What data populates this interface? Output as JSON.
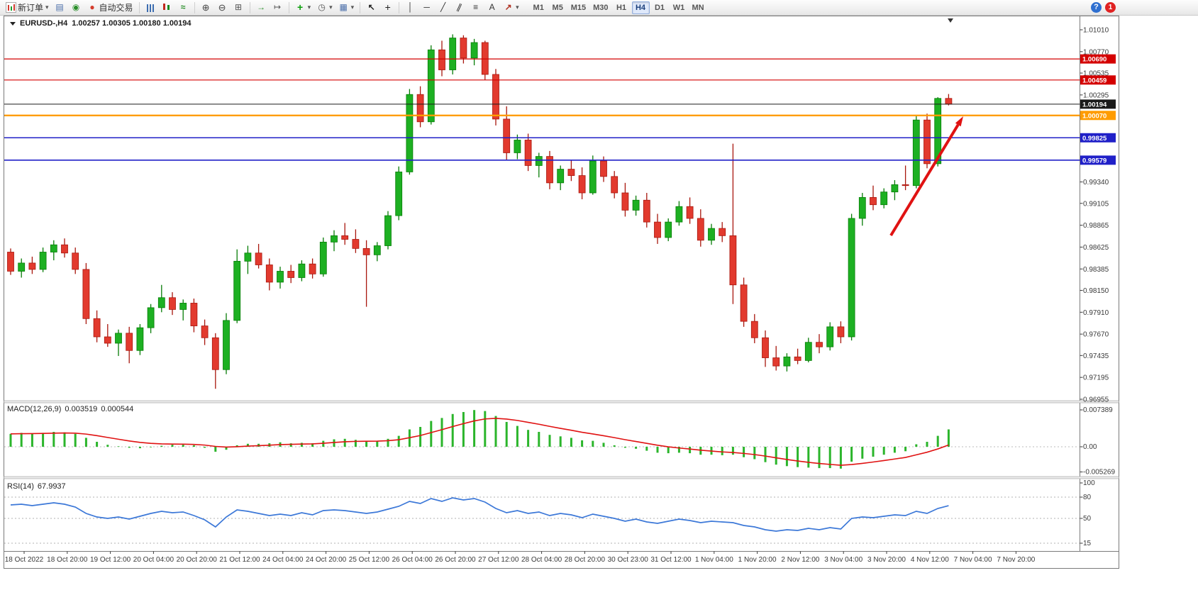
{
  "app": {
    "symbol": "EURUSD-,H4",
    "ohlc": "1.00257 1.00305 1.00180 1.00194"
  },
  "toolbar": {
    "groups": [
      {
        "items": [
          {
            "name": "new-order-button",
            "icon": "new-order",
            "label": "新订单",
            "dropdown": true
          },
          {
            "name": "charts-window-button",
            "icon": "chart-window"
          },
          {
            "name": "refresh-button",
            "icon": "refresh"
          },
          {
            "name": "autotrading-button",
            "icon": "autotrading",
            "label": "自动交易"
          }
        ]
      },
      {
        "items": [
          {
            "name": "bar-chart-button",
            "icon": "bars"
          },
          {
            "name": "candlestick-chart-button",
            "icon": "candles"
          },
          {
            "name": "line-chart-button",
            "icon": "line"
          }
        ]
      },
      {
        "items": [
          {
            "name": "zoom-in-button",
            "icon": "zoom-in"
          },
          {
            "name": "zoom-out-button",
            "icon": "zoom-out"
          },
          {
            "name": "tile-windows-button",
            "icon": "tile"
          }
        ]
      },
      {
        "items": [
          {
            "name": "auto-scroll-button",
            "icon": "auto-scroll"
          },
          {
            "name": "chart-shift-button",
            "icon": "chart-shift"
          }
        ]
      },
      {
        "items": [
          {
            "name": "indicators-button",
            "icon": "indicators",
            "dropdown": true
          },
          {
            "name": "periods-button",
            "icon": "clock",
            "dropdown": true
          },
          {
            "name": "templates-button",
            "icon": "template",
            "dropdown": true
          }
        ]
      },
      {
        "items": [
          {
            "name": "cursor-button",
            "icon": "cursor"
          },
          {
            "name": "crosshair-button",
            "icon": "crosshair"
          }
        ]
      },
      {
        "items": [
          {
            "name": "vertical-line-button",
            "icon": "vline"
          },
          {
            "name": "horizontal-line-button",
            "icon": "hline"
          },
          {
            "name": "trendline-button",
            "icon": "trendline"
          },
          {
            "name": "equidistant-channel-button",
            "icon": "channel"
          },
          {
            "name": "fibonacci-button",
            "icon": "fibo"
          },
          {
            "name": "text-button",
            "icon": "text"
          },
          {
            "name": "arrows-button",
            "icon": "arrows",
            "dropdown": true
          }
        ]
      }
    ],
    "icon_glyphs": {
      "new-order": "",
      "chart-window": "▤",
      "refresh": "◉",
      "autotrading": "●",
      "bars": "",
      "candles": "",
      "line": "≈",
      "zoom-in": "⊕",
      "zoom-out": "⊖",
      "tile": "⊞",
      "auto-scroll": "→",
      "chart-shift": "↦",
      "indicators": "+",
      "clock": "◷",
      "template": "▦",
      "cursor": "↖",
      "crosshair": "+",
      "vline": "│",
      "hline": "─",
      "trendline": "╱",
      "channel": "∥",
      "fibo": "≡",
      "text": "A",
      "arrows": "↗"
    },
    "timeframes": [
      "M1",
      "M5",
      "M15",
      "M30",
      "H1",
      "H4",
      "D1",
      "W1",
      "MN"
    ],
    "active_timeframe": "H4",
    "help_label": "?",
    "notification_badge": "1"
  },
  "indicators": {
    "macd_label": "MACD(12,26,9)",
    "macd_value_main": "0.003519",
    "macd_value_signal": "0.000544",
    "rsi_label": "RSI(14)",
    "rsi_value": "67.9937"
  },
  "colors": {
    "bull_fill": "#1db022",
    "bull_stroke": "#077d07",
    "bear_fill": "#e23a2e",
    "bear_stroke": "#a8170e",
    "macd_histogram": "#2bb52b",
    "macd_signal": "#e01212",
    "rsi_line": "#3c78d8",
    "axis_text": "#3a3a3a",
    "panel_border": "#7a7a7a"
  },
  "chart_data": {
    "type": "candlestick",
    "symbol": "EURUSD-",
    "timeframe": "H4",
    "current_ohlc": {
      "open": 1.00257,
      "high": 1.00305,
      "low": 1.0018,
      "close": 1.00194
    },
    "price_axis": {
      "top": 1.0101,
      "bottom": 0.96955,
      "labels": [
        "1.01010",
        "1.00770",
        "1.00535",
        "1.00295",
        "1.00060",
        "0.99820",
        "0.99580",
        "0.99340",
        "0.99105",
        "0.98865",
        "0.98625",
        "0.98385",
        "0.98150",
        "0.97910",
        "0.97670",
        "0.97435",
        "0.97195",
        "0.96955"
      ]
    },
    "candles": [
      [
        0.9857,
        0.9861,
        0.9832,
        0.9836
      ],
      [
        0.9836,
        0.985,
        0.9829,
        0.9845
      ],
      [
        0.9845,
        0.9852,
        0.9833,
        0.9838
      ],
      [
        0.9838,
        0.9862,
        0.9835,
        0.9857
      ],
      [
        0.9857,
        0.987,
        0.9848,
        0.9865
      ],
      [
        0.9865,
        0.9872,
        0.9851,
        0.9856
      ],
      [
        0.9856,
        0.9862,
        0.9833,
        0.9838
      ],
      [
        0.9838,
        0.9845,
        0.9778,
        0.9784
      ],
      [
        0.9784,
        0.9793,
        0.9758,
        0.9764
      ],
      [
        0.9764,
        0.9778,
        0.9753,
        0.9757
      ],
      [
        0.9757,
        0.9772,
        0.9743,
        0.9768
      ],
      [
        0.9768,
        0.9775,
        0.9735,
        0.9749
      ],
      [
        0.9749,
        0.9778,
        0.9744,
        0.9774
      ],
      [
        0.9774,
        0.98,
        0.9768,
        0.9796
      ],
      [
        0.9796,
        0.9821,
        0.9791,
        0.9807
      ],
      [
        0.9807,
        0.9813,
        0.9788,
        0.9794
      ],
      [
        0.9794,
        0.9805,
        0.9782,
        0.9801
      ],
      [
        0.9801,
        0.9806,
        0.9769,
        0.9776
      ],
      [
        0.9776,
        0.9783,
        0.9755,
        0.9763
      ],
      [
        0.9763,
        0.9768,
        0.9707,
        0.9728
      ],
      [
        0.9728,
        0.979,
        0.9723,
        0.9782
      ],
      [
        0.9782,
        0.986,
        0.9779,
        0.9847
      ],
      [
        0.9847,
        0.9864,
        0.9833,
        0.9856
      ],
      [
        0.9856,
        0.9866,
        0.9839,
        0.9843
      ],
      [
        0.9843,
        0.985,
        0.9815,
        0.9824
      ],
      [
        0.9824,
        0.9841,
        0.9817,
        0.9836
      ],
      [
        0.9836,
        0.9843,
        0.9823,
        0.9829
      ],
      [
        0.9829,
        0.9848,
        0.9825,
        0.9844
      ],
      [
        0.9844,
        0.985,
        0.9828,
        0.9833
      ],
      [
        0.9833,
        0.9873,
        0.983,
        0.9868
      ],
      [
        0.9868,
        0.9881,
        0.9858,
        0.9875
      ],
      [
        0.9875,
        0.9889,
        0.9865,
        0.9871
      ],
      [
        0.9871,
        0.9882,
        0.9856,
        0.9861
      ],
      [
        0.9861,
        0.987,
        0.9797,
        0.9854
      ],
      [
        0.9854,
        0.9868,
        0.9847,
        0.9864
      ],
      [
        0.9864,
        0.9902,
        0.986,
        0.9897
      ],
      [
        0.9897,
        0.9951,
        0.9892,
        0.9945
      ],
      [
        0.9945,
        1.0036,
        0.9942,
        1.003
      ],
      [
        1.003,
        1.0039,
        0.9994,
        1.0
      ],
      [
        1.0,
        1.0084,
        0.9997,
        1.0079
      ],
      [
        1.0079,
        1.0089,
        1.005,
        1.0057
      ],
      [
        1.0057,
        1.0096,
        1.0052,
        1.0092
      ],
      [
        1.0092,
        1.0095,
        1.0064,
        1.007
      ],
      [
        1.007,
        1.0091,
        1.0062,
        1.0087
      ],
      [
        1.0087,
        1.0089,
        1.0046,
        1.0052
      ],
      [
        1.0052,
        1.0058,
        0.9996,
        1.0003
      ],
      [
        1.0003,
        1.0017,
        0.9958,
        0.9966
      ],
      [
        0.9966,
        0.9986,
        0.9959,
        0.998
      ],
      [
        0.998,
        0.9987,
        0.9946,
        0.9952
      ],
      [
        0.9952,
        0.9966,
        0.9939,
        0.9962
      ],
      [
        0.9962,
        0.9968,
        0.9926,
        0.9933
      ],
      [
        0.9933,
        0.9952,
        0.9925,
        0.9948
      ],
      [
        0.9948,
        0.9958,
        0.9935,
        0.9941
      ],
      [
        0.9941,
        0.995,
        0.9915,
        0.9922
      ],
      [
        0.9922,
        0.9963,
        0.992,
        0.9957
      ],
      [
        0.9957,
        0.9962,
        0.9934,
        0.994
      ],
      [
        0.994,
        0.9946,
        0.9916,
        0.9922
      ],
      [
        0.9922,
        0.9933,
        0.9896,
        0.9903
      ],
      [
        0.9903,
        0.9919,
        0.9897,
        0.9914
      ],
      [
        0.9914,
        0.9922,
        0.9884,
        0.989
      ],
      [
        0.989,
        0.9899,
        0.9866,
        0.9873
      ],
      [
        0.9873,
        0.9894,
        0.9869,
        0.989
      ],
      [
        0.989,
        0.9913,
        0.9886,
        0.9907
      ],
      [
        0.9907,
        0.9917,
        0.9888,
        0.9894
      ],
      [
        0.9894,
        0.9904,
        0.9863,
        0.987
      ],
      [
        0.987,
        0.9888,
        0.9865,
        0.9883
      ],
      [
        0.9883,
        0.989,
        0.9868,
        0.9875
      ],
      [
        0.9875,
        0.9976,
        0.98,
        0.9821
      ],
      [
        0.9821,
        0.9829,
        0.9775,
        0.9781
      ],
      [
        0.9781,
        0.9789,
        0.9757,
        0.9763
      ],
      [
        0.9763,
        0.9771,
        0.9731,
        0.9741
      ],
      [
        0.9741,
        0.9754,
        0.9727,
        0.9732
      ],
      [
        0.9732,
        0.9746,
        0.9726,
        0.9742
      ],
      [
        0.9742,
        0.9751,
        0.9734,
        0.9738
      ],
      [
        0.9738,
        0.9763,
        0.9736,
        0.9758
      ],
      [
        0.9758,
        0.9767,
        0.9746,
        0.9753
      ],
      [
        0.9753,
        0.978,
        0.9749,
        0.9775
      ],
      [
        0.9775,
        0.9781,
        0.9757,
        0.9764
      ],
      [
        0.9764,
        0.9899,
        0.976,
        0.9894
      ],
      [
        0.9894,
        0.9922,
        0.9886,
        0.9917
      ],
      [
        0.9917,
        0.993,
        0.9903,
        0.9909
      ],
      [
        0.9909,
        0.9927,
        0.9905,
        0.9923
      ],
      [
        0.9923,
        0.9936,
        0.9914,
        0.9931
      ],
      [
        0.9931,
        0.9952,
        0.9925,
        0.993
      ],
      [
        0.993,
        1.0007,
        0.9927,
        1.0002
      ],
      [
        1.0002,
        1.0009,
        0.9949,
        0.9954
      ],
      [
        0.9954,
        1.0027,
        0.9951,
        1.00257
      ],
      [
        1.00257,
        1.00305,
        1.0018,
        1.00194
      ]
    ],
    "hlines": [
      {
        "price": 1.0069,
        "label": "1.00690",
        "color": "#d40000",
        "width": 1.2
      },
      {
        "price": 1.00459,
        "label": "1.00459",
        "color": "#d40000",
        "width": 1.2
      },
      {
        "price": 1.0007,
        "label": "1.00070",
        "color": "#ff9c00",
        "width": 2.4
      },
      {
        "price": 0.99825,
        "label": "0.99825",
        "color": "#2020c8",
        "width": 1.6
      },
      {
        "price": 0.99579,
        "label": "0.99579",
        "color": "#2020c8",
        "width": 1.6
      }
    ],
    "bid_line": {
      "price": 1.00194,
      "label": "1.00194",
      "color": "#1a1a1a"
    },
    "macd": {
      "label": "MACD(12,26,9)",
      "main": 0.003519,
      "signal": 0.000544,
      "axis_labels": [
        "0.007389",
        "0.00",
        "-0.005269"
      ],
      "histogram": [
        0.0026,
        0.0028,
        0.0027,
        0.0028,
        0.003,
        0.0029,
        0.0026,
        0.0018,
        0.001,
        0.0004,
        0.0001,
        -0.0002,
        -0.0003,
        -0.0001,
        0.0002,
        0.0004,
        0.0004,
        0.0003,
        -0.0002,
        -0.001,
        -0.0006,
        0.0003,
        0.0006,
        0.0006,
        0.0007,
        0.0009,
        0.0007,
        0.0008,
        0.0007,
        0.0012,
        0.0015,
        0.0016,
        0.0014,
        0.0012,
        0.0012,
        0.0016,
        0.0022,
        0.0035,
        0.004,
        0.0052,
        0.0058,
        0.0066,
        0.007,
        0.0074,
        0.0072,
        0.0062,
        0.005,
        0.0042,
        0.0034,
        0.003,
        0.0024,
        0.0021,
        0.0018,
        0.0013,
        0.0012,
        0.0008,
        0.0003,
        -0.0002,
        -0.0004,
        -0.0008,
        -0.0012,
        -0.0013,
        -0.0012,
        -0.0013,
        -0.0016,
        -0.0016,
        -0.0017,
        -0.0016,
        -0.0021,
        -0.0025,
        -0.0031,
        -0.0036,
        -0.0039,
        -0.0041,
        -0.0042,
        -0.0043,
        -0.0043,
        -0.0044,
        -0.003,
        -0.0024,
        -0.002,
        -0.0016,
        -0.0012,
        -0.0009,
        0.0005,
        0.001,
        0.0022,
        0.0035
      ]
    },
    "rsi": {
      "label": "RSI(14)",
      "period": 14,
      "value": 67.9937,
      "levels": [
        80,
        50,
        15
      ],
      "axis_labels": [
        "100",
        "80",
        "50",
        "15"
      ],
      "values": [
        69,
        70,
        68,
        70,
        72,
        70,
        66,
        57,
        52,
        50,
        52,
        49,
        53,
        57,
        60,
        58,
        59,
        54,
        48,
        38,
        52,
        62,
        60,
        57,
        54,
        56,
        54,
        58,
        55,
        61,
        62,
        61,
        59,
        57,
        59,
        63,
        67,
        74,
        71,
        78,
        74,
        79,
        76,
        78,
        73,
        64,
        58,
        61,
        57,
        59,
        54,
        57,
        55,
        51,
        56,
        53,
        50,
        46,
        49,
        45,
        43,
        46,
        49,
        47,
        44,
        46,
        45,
        44,
        40,
        38,
        34,
        32,
        34,
        33,
        36,
        34,
        37,
        35,
        50,
        52,
        51,
        53,
        55,
        54,
        60,
        57,
        64,
        67.99
      ]
    },
    "time_labels": [
      "18 Oct 2022",
      "18 Oct 20:00",
      "19 Oct 12:00",
      "20 Oct 04:00",
      "20 Oct 20:00",
      "21 Oct 12:00",
      "24 Oct 04:00",
      "24 Oct 20:00",
      "25 Oct 12:00",
      "26 Oct 04:00",
      "26 Oct 20:00",
      "27 Oct 12:00",
      "28 Oct 04:00",
      "28 Oct 20:00",
      "30 Oct 23:00",
      "31 Oct 12:00",
      "1 Nov 04:00",
      "1 Nov 20:00",
      "2 Nov 12:00",
      "3 Nov 04:00",
      "3 Nov 20:00",
      "4 Nov 12:00",
      "7 Nov 04:00",
      "7 Nov 20:00"
    ],
    "annotations": [
      {
        "type": "arrow",
        "from": [
          1256,
          332
        ],
        "to": [
          1358,
          164
        ],
        "color": "#e01212",
        "width": 4
      }
    ]
  }
}
